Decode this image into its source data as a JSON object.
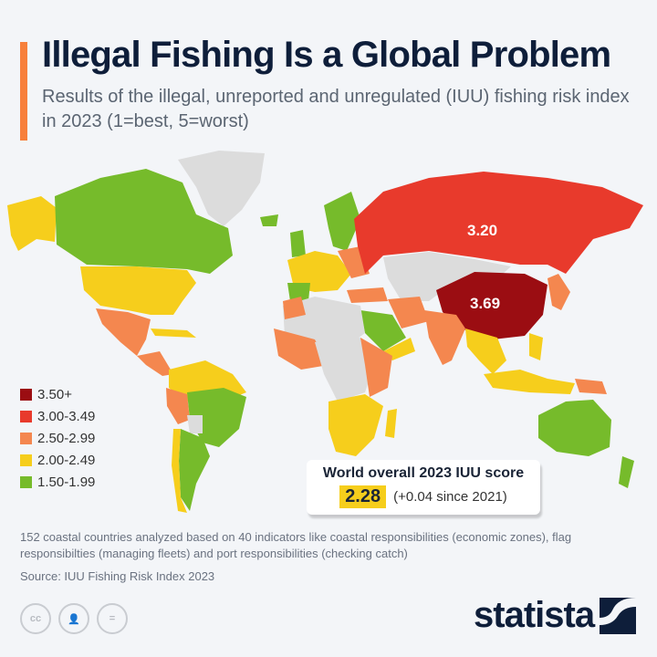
{
  "header": {
    "title": "Illegal Fishing Is a Global Problem",
    "subtitle": "Results of the illegal, unreported and unregulated (IUU) fishing risk index in 2023 (1=best, 5=worst)",
    "accent_color": "#f7803b"
  },
  "map": {
    "type": "choropleth-world",
    "labels": {
      "russia": "3.20",
      "china": "3.69"
    },
    "colors": {
      "no_data": "#dcdcdc",
      "c1": "#9b0d12",
      "c2": "#e83a2c",
      "c3": "#f4874f",
      "c4": "#f6ce1c",
      "c5": "#76bb2b"
    }
  },
  "legend": {
    "items": [
      {
        "label": "3.50+",
        "color": "#9b0d12"
      },
      {
        "label": "3.00-3.49",
        "color": "#e83a2c"
      },
      {
        "label": "2.50-2.99",
        "color": "#f4874f"
      },
      {
        "label": "2.00-2.49",
        "color": "#f6ce1c"
      },
      {
        "label": "1.50-1.99",
        "color": "#76bb2b"
      }
    ]
  },
  "score_box": {
    "title": "World overall 2023 IUU score",
    "value": "2.28",
    "change": "(+0.04 since 2021)"
  },
  "footer": {
    "note": "152 coastal countries analyzed based on 40 indicators like coastal responsibilities (economic zones), flag responsibilties (managing fleets) and port responsibilities (checking catch)",
    "source": "Source: IUU Fishing Risk Index 2023",
    "license_icons": [
      "cc-icon",
      "attribution-icon",
      "no-derivatives-icon"
    ],
    "logo": "statista"
  }
}
